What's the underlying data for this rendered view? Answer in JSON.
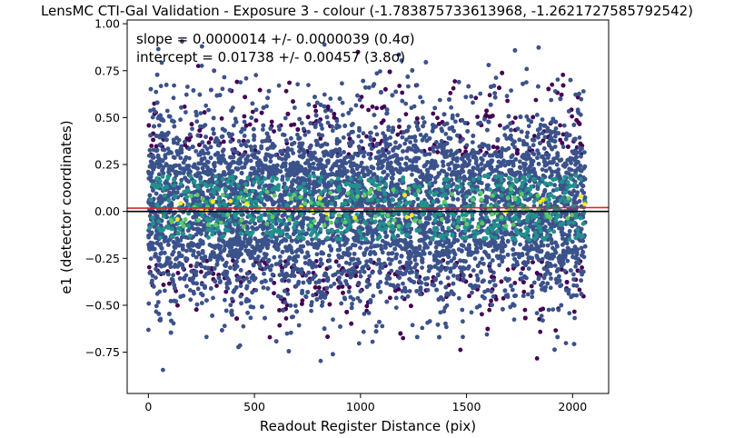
{
  "chart_data": {
    "type": "scatter",
    "title": "LensMC CTI-Gal Validation - Exposure 3 - colour (-1.783875733613968, -1.2621727585792542)",
    "xlabel": "Readout Register Distance (pix)",
    "ylabel": "e1 (detector coordinates)",
    "xlim": [
      -100,
      2170
    ],
    "ylim": [
      -0.97,
      1.02
    ],
    "xticks": [
      0,
      500,
      1000,
      1500,
      2000
    ],
    "yticks": [
      -0.75,
      -0.5,
      -0.25,
      0.0,
      0.25,
      0.5,
      0.75,
      1.0
    ],
    "xtick_labels": [
      "0",
      "500",
      "1000",
      "1500",
      "2000"
    ],
    "ytick_labels": [
      "−0.75",
      "−0.50",
      "−0.25",
      "0.00",
      "0.25",
      "0.50",
      "0.75",
      "1.00"
    ],
    "annotations": {
      "slope": "slope = 0.0000014 +/- 0.0000039 (0.4σ)",
      "intercept": "intercept = 0.01738 +/- 0.00457 (3.8σ)"
    },
    "fit": {
      "slope": 1.4e-06,
      "intercept": 0.01738,
      "color": "#d62728"
    },
    "zero_line": {
      "y": 0.0,
      "color": "#000000"
    },
    "scatter": {
      "x_range": [
        0,
        2060
      ],
      "y_center": 0.02,
      "y_spread": 0.26,
      "approx_points": 9000,
      "colormap": [
        "#440154",
        "#3b528b",
        "#21918c",
        "#5ec962",
        "#fde725"
      ]
    },
    "grid": false,
    "legend": "none"
  }
}
